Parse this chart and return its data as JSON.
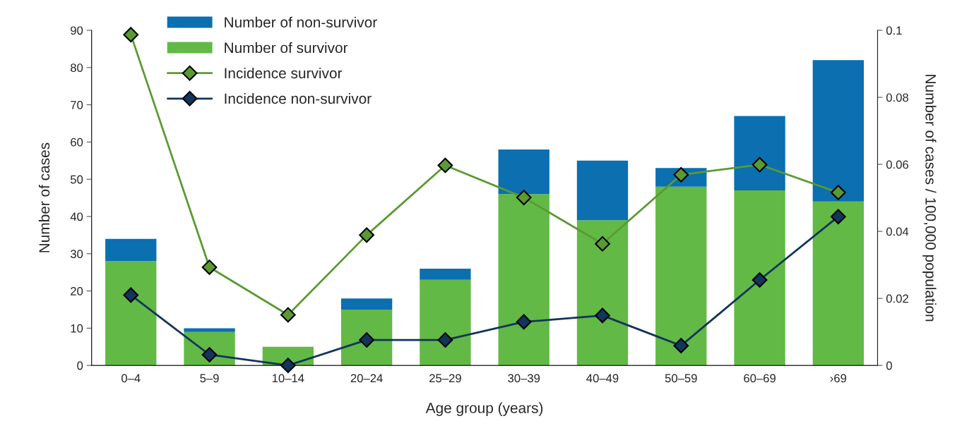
{
  "chart_data": {
    "type": "bar",
    "stacked": true,
    "xlabel": "Age group (years)",
    "ylabel": "Number of cases",
    "y2label": "Number of cases / 100,000 population",
    "categories": [
      "0–4",
      "5–9",
      "10–14",
      "20–24",
      "25–29",
      "30–39",
      "40–49",
      "50–59",
      "60–69",
      "›69"
    ],
    "series": [
      {
        "name": "Number of survivor",
        "color": "#62b946",
        "values": [
          28,
          9,
          5,
          15,
          23,
          46,
          39,
          48,
          47,
          44
        ]
      },
      {
        "name": "Number of non-survivor",
        "color": "#0b6fb0",
        "values": [
          6,
          1,
          0,
          3,
          3,
          12,
          16,
          5,
          20,
          38
        ]
      },
      {
        "name": "Incidence survivor",
        "type": "line",
        "axis": "y2",
        "color": "#5b9a32",
        "marker": "diamond",
        "values": [
          0.0987,
          0.0293,
          0.0151,
          0.0389,
          0.0597,
          0.0501,
          0.0363,
          0.0569,
          0.0599,
          0.0516
        ]
      },
      {
        "name": "Incidence non-survivor",
        "type": "line",
        "axis": "y2",
        "color": "#12355b",
        "marker": "diamond",
        "values": [
          0.021,
          0.0032,
          0,
          0.0076,
          0.0076,
          0.013,
          0.0149,
          0.0059,
          0.0255,
          0.0444
        ]
      }
    ],
    "ylim": [
      0,
      90
    ],
    "yticks": [
      0,
      10,
      20,
      30,
      40,
      50,
      60,
      70,
      80,
      90
    ],
    "y2lim": [
      0,
      0.1
    ],
    "y2ticks": [
      {
        "value": 0,
        "label": "0"
      },
      {
        "value": 0.02,
        "label": "0.02"
      },
      {
        "value": 0.04,
        "label": "0.04"
      },
      {
        "value": 0.06,
        "label": "0.06"
      },
      {
        "value": 0.08,
        "label": "0.08"
      },
      {
        "value": 0.1,
        "label": "0.1"
      }
    ],
    "legend": "top left",
    "grid": false
  }
}
